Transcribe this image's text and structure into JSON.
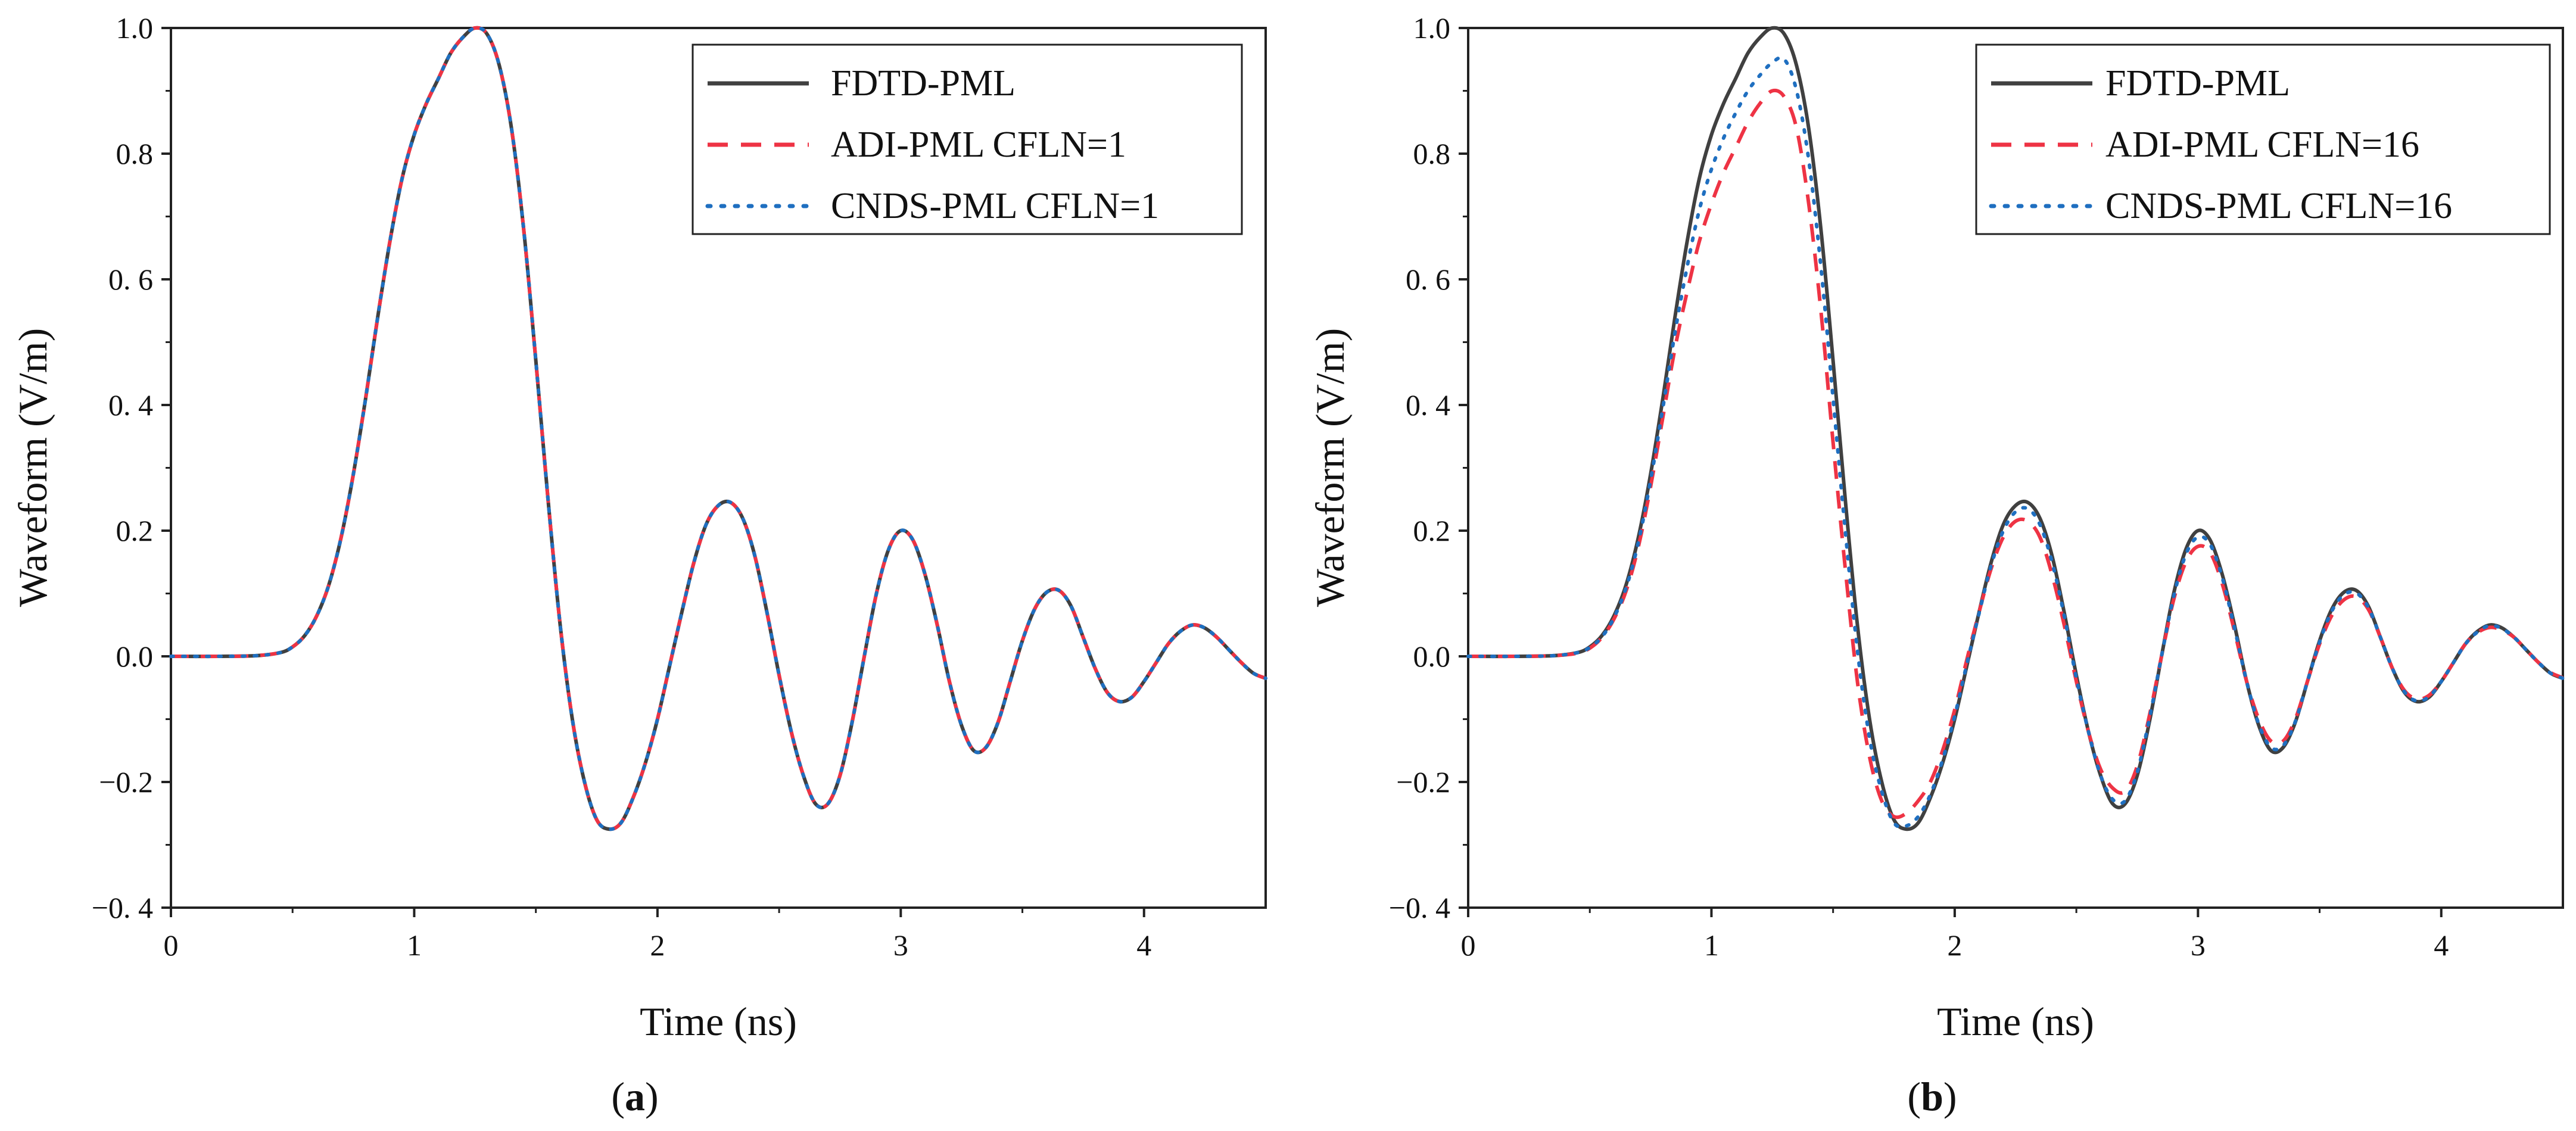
{
  "figure": {
    "panels": [
      {
        "label_prefix": "(",
        "label_letter": "a",
        "label_suffix": ")"
      },
      {
        "label_prefix": "(",
        "label_letter": "b",
        "label_suffix": ")"
      }
    ]
  },
  "chart_data": [
    {
      "type": "line",
      "panel": "a",
      "title": "",
      "xlabel": "Time (ns)",
      "ylabel": "Waveform (V/m)",
      "xlim": [
        0,
        4.5
      ],
      "ylim": [
        -0.4,
        1.0
      ],
      "xticks": [
        0,
        1,
        2,
        3,
        4
      ],
      "xtick_labels": [
        "0",
        "1",
        "2",
        "3",
        "4"
      ],
      "yticks": [
        -0.4,
        -0.2,
        0.0,
        0.2,
        0.4,
        0.6,
        0.8,
        1.0
      ],
      "ytick_labels": [
        "−0. 4",
        "−0.2",
        "0.0",
        "0.2",
        "0. 4",
        "0. 6",
        "0.8",
        "1.0"
      ],
      "grid": false,
      "legend_position": "top-right",
      "x": [
        0.0,
        0.2,
        0.35,
        0.45,
        0.5,
        0.55,
        0.6,
        0.65,
        0.7,
        0.75,
        0.8,
        0.85,
        0.9,
        0.95,
        1.0,
        1.05,
        1.1,
        1.15,
        1.2,
        1.25,
        1.3,
        1.35,
        1.4,
        1.45,
        1.5,
        1.55,
        1.6,
        1.65,
        1.7,
        1.75,
        1.8,
        1.85,
        1.9,
        1.95,
        2.0,
        2.05,
        2.1,
        2.15,
        2.2,
        2.25,
        2.3,
        2.35,
        2.4,
        2.45,
        2.5,
        2.55,
        2.6,
        2.65,
        2.7,
        2.75,
        2.8,
        2.85,
        2.9,
        2.95,
        3.0,
        3.05,
        3.1,
        3.15,
        3.2,
        3.25,
        3.3,
        3.35,
        3.4,
        3.45,
        3.5,
        3.55,
        3.6,
        3.65,
        3.7,
        3.75,
        3.8,
        3.85,
        3.9,
        3.95,
        4.0,
        4.05,
        4.1,
        4.15,
        4.2,
        4.25,
        4.3,
        4.35,
        4.4,
        4.45,
        4.5
      ],
      "series": [
        {
          "name": "FDTD-PML",
          "color": "#404040",
          "style": "solid",
          "values": [
            0.0,
            0.0,
            0.001,
            0.006,
            0.015,
            0.033,
            0.065,
            0.115,
            0.19,
            0.29,
            0.41,
            0.54,
            0.66,
            0.76,
            0.83,
            0.88,
            0.92,
            0.96,
            0.985,
            1.0,
            0.99,
            0.94,
            0.84,
            0.68,
            0.47,
            0.25,
            0.05,
            -0.1,
            -0.2,
            -0.26,
            -0.275,
            -0.265,
            -0.225,
            -0.17,
            -0.1,
            -0.015,
            0.07,
            0.15,
            0.21,
            0.24,
            0.245,
            0.22,
            0.16,
            0.07,
            -0.03,
            -0.12,
            -0.19,
            -0.235,
            -0.235,
            -0.19,
            -0.105,
            0.0,
            0.1,
            0.17,
            0.2,
            0.185,
            0.13,
            0.05,
            -0.04,
            -0.11,
            -0.15,
            -0.145,
            -0.105,
            -0.04,
            0.025,
            0.075,
            0.102,
            0.105,
            0.08,
            0.03,
            -0.02,
            -0.058,
            -0.072,
            -0.065,
            -0.04,
            -0.01,
            0.02,
            0.04,
            0.05,
            0.045,
            0.03,
            0.01,
            -0.01,
            -0.027,
            -0.035
          ]
        },
        {
          "name": "ADI-PML CFLN=1",
          "color": "#ee3344",
          "style": "dashed",
          "values": [
            0.0,
            0.0,
            0.001,
            0.006,
            0.015,
            0.033,
            0.065,
            0.115,
            0.19,
            0.29,
            0.41,
            0.54,
            0.66,
            0.76,
            0.83,
            0.88,
            0.92,
            0.96,
            0.985,
            1.0,
            0.99,
            0.94,
            0.84,
            0.68,
            0.47,
            0.25,
            0.05,
            -0.1,
            -0.2,
            -0.26,
            -0.275,
            -0.265,
            -0.225,
            -0.17,
            -0.1,
            -0.015,
            0.07,
            0.15,
            0.21,
            0.24,
            0.245,
            0.22,
            0.16,
            0.07,
            -0.03,
            -0.12,
            -0.19,
            -0.235,
            -0.235,
            -0.19,
            -0.105,
            0.0,
            0.1,
            0.17,
            0.2,
            0.185,
            0.13,
            0.05,
            -0.04,
            -0.11,
            -0.15,
            -0.145,
            -0.105,
            -0.04,
            0.025,
            0.075,
            0.102,
            0.105,
            0.08,
            0.03,
            -0.02,
            -0.058,
            -0.072,
            -0.065,
            -0.04,
            -0.01,
            0.02,
            0.04,
            0.05,
            0.045,
            0.03,
            0.01,
            -0.01,
            -0.027,
            -0.035
          ]
        },
        {
          "name": "CNDS-PML CFLN=1",
          "color": "#1f6fc0",
          "style": "dotted",
          "values": [
            0.0,
            0.0,
            0.001,
            0.006,
            0.015,
            0.033,
            0.065,
            0.115,
            0.19,
            0.29,
            0.41,
            0.54,
            0.66,
            0.76,
            0.83,
            0.88,
            0.92,
            0.96,
            0.985,
            1.0,
            0.99,
            0.94,
            0.84,
            0.68,
            0.47,
            0.25,
            0.05,
            -0.1,
            -0.2,
            -0.26,
            -0.275,
            -0.265,
            -0.225,
            -0.17,
            -0.1,
            -0.015,
            0.07,
            0.15,
            0.21,
            0.24,
            0.245,
            0.22,
            0.16,
            0.07,
            -0.03,
            -0.12,
            -0.19,
            -0.235,
            -0.235,
            -0.19,
            -0.105,
            0.0,
            0.1,
            0.17,
            0.2,
            0.185,
            0.13,
            0.05,
            -0.04,
            -0.11,
            -0.15,
            -0.145,
            -0.105,
            -0.04,
            0.025,
            0.075,
            0.102,
            0.105,
            0.08,
            0.03,
            -0.02,
            -0.058,
            -0.072,
            -0.065,
            -0.04,
            -0.01,
            0.02,
            0.04,
            0.05,
            0.045,
            0.03,
            0.01,
            -0.01,
            -0.027,
            -0.035
          ]
        }
      ]
    },
    {
      "type": "line",
      "panel": "b",
      "title": "",
      "xlabel": "Time (ns)",
      "ylabel": "Waveform (V/m)",
      "xlim": [
        0,
        4.5
      ],
      "ylim": [
        -0.4,
        1.0
      ],
      "xticks": [
        0,
        1,
        2,
        3,
        4
      ],
      "xtick_labels": [
        "0",
        "1",
        "2",
        "3",
        "4"
      ],
      "yticks": [
        -0.4,
        -0.2,
        0.0,
        0.2,
        0.4,
        0.6,
        0.8,
        1.0
      ],
      "ytick_labels": [
        "−0. 4",
        "−0.2",
        "0.0",
        "0.2",
        "0. 4",
        "0. 6",
        "0.8",
        "1.0"
      ],
      "grid": false,
      "legend_position": "top-right",
      "x": [
        0.0,
        0.2,
        0.35,
        0.45,
        0.5,
        0.55,
        0.6,
        0.65,
        0.7,
        0.75,
        0.8,
        0.85,
        0.9,
        0.95,
        1.0,
        1.05,
        1.1,
        1.15,
        1.2,
        1.25,
        1.3,
        1.35,
        1.4,
        1.45,
        1.5,
        1.55,
        1.6,
        1.65,
        1.7,
        1.75,
        1.8,
        1.85,
        1.9,
        1.95,
        2.0,
        2.05,
        2.1,
        2.15,
        2.2,
        2.25,
        2.3,
        2.35,
        2.4,
        2.45,
        2.5,
        2.55,
        2.6,
        2.65,
        2.7,
        2.75,
        2.8,
        2.85,
        2.9,
        2.95,
        3.0,
        3.05,
        3.1,
        3.15,
        3.2,
        3.25,
        3.3,
        3.35,
        3.4,
        3.45,
        3.5,
        3.55,
        3.6,
        3.65,
        3.7,
        3.75,
        3.8,
        3.85,
        3.9,
        3.95,
        4.0,
        4.05,
        4.1,
        4.15,
        4.2,
        4.25,
        4.3,
        4.35,
        4.4,
        4.45,
        4.5
      ],
      "series": [
        {
          "name": "FDTD-PML",
          "color": "#404040",
          "style": "solid",
          "values": [
            0.0,
            0.0,
            0.001,
            0.006,
            0.015,
            0.033,
            0.065,
            0.115,
            0.19,
            0.29,
            0.41,
            0.54,
            0.66,
            0.76,
            0.83,
            0.88,
            0.92,
            0.96,
            0.985,
            1.0,
            0.99,
            0.94,
            0.84,
            0.68,
            0.47,
            0.25,
            0.05,
            -0.1,
            -0.2,
            -0.26,
            -0.275,
            -0.265,
            -0.225,
            -0.17,
            -0.1,
            -0.015,
            0.07,
            0.15,
            0.21,
            0.24,
            0.245,
            0.22,
            0.16,
            0.07,
            -0.03,
            -0.12,
            -0.19,
            -0.235,
            -0.235,
            -0.19,
            -0.105,
            0.0,
            0.1,
            0.17,
            0.2,
            0.185,
            0.13,
            0.05,
            -0.04,
            -0.11,
            -0.15,
            -0.145,
            -0.105,
            -0.04,
            0.025,
            0.075,
            0.102,
            0.105,
            0.08,
            0.03,
            -0.02,
            -0.058,
            -0.072,
            -0.065,
            -0.04,
            -0.01,
            0.02,
            0.04,
            0.05,
            0.045,
            0.03,
            0.01,
            -0.01,
            -0.027,
            -0.035
          ]
        },
        {
          "name": "ADI-PML CFLN=16",
          "color": "#ee3344",
          "style": "dashed",
          "values": [
            0.0,
            0.0,
            0.001,
            0.005,
            0.013,
            0.03,
            0.06,
            0.105,
            0.175,
            0.27,
            0.38,
            0.49,
            0.58,
            0.66,
            0.72,
            0.77,
            0.81,
            0.85,
            0.88,
            0.9,
            0.89,
            0.84,
            0.72,
            0.55,
            0.34,
            0.14,
            -0.04,
            -0.16,
            -0.23,
            -0.255,
            -0.25,
            -0.23,
            -0.2,
            -0.15,
            -0.085,
            -0.005,
            0.07,
            0.14,
            0.19,
            0.215,
            0.215,
            0.19,
            0.13,
            0.05,
            -0.04,
            -0.12,
            -0.18,
            -0.21,
            -0.215,
            -0.175,
            -0.095,
            0.0,
            0.09,
            0.15,
            0.175,
            0.165,
            0.115,
            0.04,
            -0.04,
            -0.1,
            -0.135,
            -0.135,
            -0.1,
            -0.04,
            0.02,
            0.065,
            0.09,
            0.095,
            0.075,
            0.03,
            -0.02,
            -0.055,
            -0.068,
            -0.062,
            -0.04,
            -0.01,
            0.02,
            0.038,
            0.046,
            0.042,
            0.03,
            0.01,
            -0.01,
            -0.026,
            -0.034
          ]
        },
        {
          "name": "CNDS-PML CFLN=16",
          "color": "#1f6fc0",
          "style": "dotted",
          "values": [
            0.0,
            0.0,
            0.001,
            0.006,
            0.014,
            0.031,
            0.062,
            0.11,
            0.182,
            0.28,
            0.395,
            0.515,
            0.62,
            0.71,
            0.775,
            0.825,
            0.865,
            0.9,
            0.925,
            0.945,
            0.95,
            0.9,
            0.79,
            0.62,
            0.41,
            0.2,
            0.01,
            -0.13,
            -0.215,
            -0.265,
            -0.27,
            -0.255,
            -0.22,
            -0.165,
            -0.095,
            -0.012,
            0.068,
            0.145,
            0.2,
            0.23,
            0.235,
            0.21,
            0.15,
            0.065,
            -0.035,
            -0.12,
            -0.19,
            -0.228,
            -0.23,
            -0.185,
            -0.1,
            0.0,
            0.095,
            0.162,
            0.19,
            0.178,
            0.125,
            0.045,
            -0.04,
            -0.108,
            -0.145,
            -0.142,
            -0.104,
            -0.04,
            0.023,
            0.072,
            0.098,
            0.101,
            0.078,
            0.03,
            -0.02,
            -0.057,
            -0.071,
            -0.064,
            -0.04,
            -0.01,
            0.02,
            0.039,
            0.049,
            0.044,
            0.03,
            0.01,
            -0.01,
            -0.027,
            -0.035
          ]
        }
      ]
    }
  ]
}
